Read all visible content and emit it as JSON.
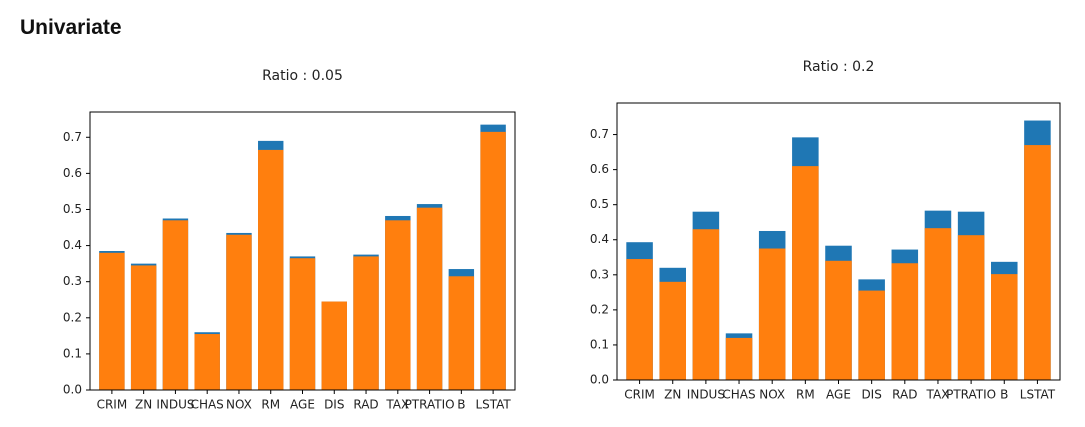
{
  "header": {
    "title": "Univariate"
  },
  "chart_data": [
    {
      "type": "bar",
      "title": "Ratio : 0.05",
      "categories": [
        "CRIM",
        "ZN",
        "INDUS",
        "CHAS",
        "NOX",
        "RM",
        "AGE",
        "DIS",
        "RAD",
        "TAX",
        "PTRATIO",
        "B",
        "LSTAT"
      ],
      "series": [
        {
          "color": "#1f77b4",
          "values": [
            0.385,
            0.35,
            0.475,
            0.16,
            0.435,
            0.69,
            0.37,
            0.245,
            0.375,
            0.482,
            0.515,
            0.335,
            0.735
          ]
        },
        {
          "color": "#ff7f0e",
          "values": [
            0.38,
            0.345,
            0.47,
            0.155,
            0.43,
            0.665,
            0.365,
            0.245,
            0.37,
            0.47,
            0.505,
            0.315,
            0.715
          ]
        }
      ],
      "ylim": [
        0,
        0.77
      ],
      "yticks": [
        0.0,
        0.1,
        0.2,
        0.3,
        0.4,
        0.5,
        0.6,
        0.7
      ]
    },
    {
      "type": "bar",
      "title": "Ratio : 0.2",
      "categories": [
        "CRIM",
        "ZN",
        "INDUS",
        "CHAS",
        "NOX",
        "RM",
        "AGE",
        "DIS",
        "RAD",
        "TAX",
        "PTRATIO",
        "B",
        "LSTAT"
      ],
      "series": [
        {
          "color": "#1f77b4",
          "values": [
            0.393,
            0.32,
            0.48,
            0.133,
            0.425,
            0.692,
            0.383,
            0.287,
            0.372,
            0.483,
            0.48,
            0.337,
            0.74
          ]
        },
        {
          "color": "#ff7f0e",
          "values": [
            0.345,
            0.28,
            0.43,
            0.12,
            0.375,
            0.61,
            0.34,
            0.255,
            0.333,
            0.433,
            0.413,
            0.302,
            0.67
          ]
        }
      ],
      "ylim": [
        0,
        0.79
      ],
      "yticks": [
        0.0,
        0.1,
        0.2,
        0.3,
        0.4,
        0.5,
        0.6,
        0.7
      ]
    }
  ]
}
